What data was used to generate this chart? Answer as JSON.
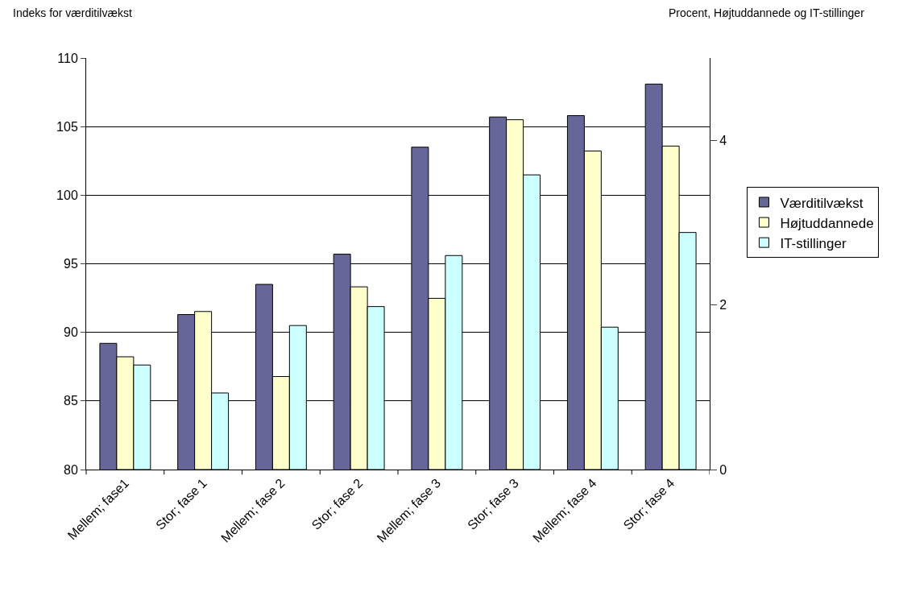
{
  "chart_data": {
    "type": "bar",
    "ylabel": "Indeks for værditilvækst",
    "y2label": "Procent, Højtuddannede og IT-stillinger",
    "categories": [
      "Mellem; fase1",
      "Stor; fase 1",
      "Mellem; fase 2",
      "Stor; fase 2",
      "Mellem; fase 3",
      "Stor; fase 3",
      "Mellem; fase 4",
      "Stor; fase 4"
    ],
    "series": [
      {
        "name": "Værditilvækst",
        "color": "#666699",
        "values": [
          89.2,
          91.3,
          93.5,
          95.7,
          103.5,
          105.7,
          105.8,
          108.1
        ]
      },
      {
        "name": "Højtuddannede",
        "color": "#ffffcc",
        "axis": "y2",
        "values": [
          1.37,
          1.92,
          1.13,
          2.22,
          2.08,
          4.25,
          3.87,
          3.93
        ]
      },
      {
        "name": "IT-stillinger",
        "color": "#ccffff",
        "axis": "y2",
        "values": [
          1.27,
          0.93,
          1.75,
          1.98,
          2.6,
          3.58,
          1.73,
          2.88
        ]
      }
    ],
    "ylim": [
      80,
      110
    ],
    "yticks": [
      80,
      85,
      90,
      95,
      100,
      105,
      110
    ],
    "y2lim": [
      0,
      5
    ],
    "y2ticks": [
      0,
      2,
      4
    ],
    "grid": "y",
    "legend": "right"
  }
}
